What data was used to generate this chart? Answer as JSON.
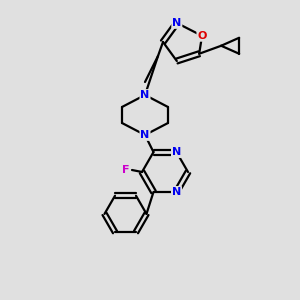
{
  "background_color": "#e0e0e0",
  "bond_color": "#000000",
  "atom_colors": {
    "N": "#0000ee",
    "O": "#dd0000",
    "F": "#cc00cc",
    "C": "#000000"
  },
  "figsize": [
    3.0,
    3.0
  ],
  "dpi": 100
}
